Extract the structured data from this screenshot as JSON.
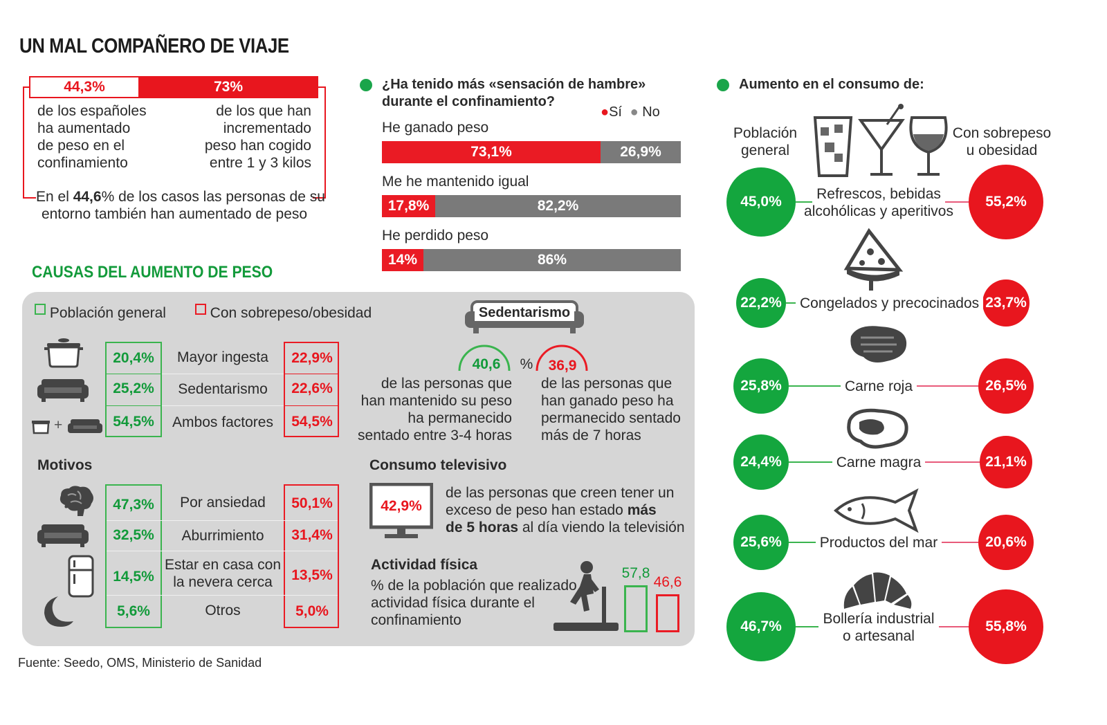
{
  "title": "UN MAL COMPAÑERO DE VIAJE",
  "colors": {
    "green": "#129a3a",
    "red": "#e8161e",
    "gray": "#7a7a7a",
    "panel": "#d6d6d6"
  },
  "top_stat": {
    "pct_left": "44,3%",
    "pct_right": "73%",
    "left_text": [
      "de los españoles",
      "ha aumentado",
      "de peso en el",
      "confinamiento"
    ],
    "right_text": [
      "de los que han",
      "incrementado",
      "peso han cogido",
      "entre 1 y 3 kilos"
    ],
    "entorno_pre": "En el ",
    "entorno_bold": "44,6",
    "entorno_post": "% de los casos las personas de su",
    "entorno_line2": "entorno también han aumentado de peso"
  },
  "hambre": {
    "question_line1": "¿Ha tenido más «sensación de hambre»",
    "question_line2": "durante el confinamiento?",
    "legend_si": "Sí",
    "legend_no": "No"
  },
  "chart_data": [
    {
      "type": "bar",
      "title": "¿Ha tenido más «sensación de hambre» durante el confinamiento?",
      "categories": [
        "He ganado peso",
        "Me he mantenido igual",
        "He perdido peso"
      ],
      "series": [
        {
          "name": "Sí",
          "values": [
            73.1,
            17.8,
            14
          ],
          "labels": [
            "73,1%",
            "17,8%",
            "14%"
          ]
        },
        {
          "name": "No",
          "values": [
            26.9,
            82.2,
            86
          ],
          "labels": [
            "26,9%",
            "82,2%",
            "86%"
          ]
        }
      ]
    },
    {
      "type": "bar",
      "title": "Actividad física",
      "categories": [
        "Población general",
        "Con sobrepeso/obesidad"
      ],
      "values": [
        57.8,
        46.6
      ],
      "labels": [
        "57,8",
        "46,6"
      ]
    }
  ],
  "causas": {
    "heading": "CAUSAS DEL AUMENTO DE PESO",
    "legend_general": "Población general",
    "legend_obesidad": "Con sobrepeso/obesidad",
    "rows": [
      {
        "label": "Mayor ingesta",
        "general": "20,4%",
        "obesidad": "22,9%"
      },
      {
        "label": "Sedentarismo",
        "general": "25,2%",
        "obesidad": "22,6%"
      },
      {
        "label": "Ambos factores",
        "general": "54,5%",
        "obesidad": "54,5%"
      }
    ],
    "motivos_heading": "Motivos",
    "motivos": [
      {
        "label": "Por ansiedad",
        "general": "47,3%",
        "obesidad": "50,1%"
      },
      {
        "label": "Aburrimiento",
        "general": "32,5%",
        "obesidad": "31,4%"
      },
      {
        "label_line1": "Estar en casa con",
        "label_line2": "la nevera cerca",
        "general": "14,5%",
        "obesidad": "13,5%"
      },
      {
        "label": "Otros",
        "general": "5,6%",
        "obesidad": "5,0%"
      }
    ],
    "plus": "+"
  },
  "sedentarismo": {
    "heading": "Sedentarismo",
    "val_green": "40,6",
    "pct_sign": "%",
    "val_red": "36,9",
    "left_text": [
      "de las personas que",
      "han mantenido su peso",
      "ha permanecido",
      "sentado entre 3-4 horas"
    ],
    "right_text": [
      "de las personas que",
      "han ganado peso ha",
      "permanecido sentado",
      "más de 7 horas"
    ]
  },
  "tv": {
    "heading": "Consumo televisivo",
    "value": "42,9%",
    "line1": "de las personas que creen tener un",
    "line2_pre": "exceso de peso han estado ",
    "line2_bold": "más",
    "line3_bold": "de 5 horas",
    "line3_post": " al día viendo la televisión"
  },
  "actividad": {
    "heading": "Actividad física",
    "text": [
      "% de la población que realizado",
      "actividad física durante el",
      "confinamiento"
    ],
    "val_green": "57,8",
    "val_red": "46,6"
  },
  "consumo": {
    "heading": "Aumento en el consumo de:",
    "label_general": [
      "Población",
      "general"
    ],
    "label_obesidad": [
      "Con sobrepeso",
      "u obesidad"
    ],
    "items": [
      {
        "label_line1": "Refrescos, bebidas",
        "label_line2": "alcohólicas y aperitivos",
        "general": "45,0%",
        "obesidad": "55,2%"
      },
      {
        "label_line1": "Congelados y precocinados",
        "general": "22,2%",
        "obesidad": "23,7%"
      },
      {
        "label_line1": "Carne roja",
        "general": "25,8%",
        "obesidad": "26,5%"
      },
      {
        "label_line1": "Carne magra",
        "general": "24,4%",
        "obesidad": "21,1%"
      },
      {
        "label_line1": "Productos del mar",
        "general": "25,6%",
        "obesidad": "20,6%"
      },
      {
        "label_line1": "Bollería industrial",
        "label_line2": "o artesanal",
        "general": "46,7%",
        "obesidad": "55,8%"
      }
    ]
  },
  "source": "Fuente: Seedo, OMS, Ministerio de Sanidad",
  "icons": [
    "pot-icon",
    "sofa-icon",
    "brain-icon",
    "fridge-icon",
    "moon-icon",
    "tv-icon",
    "treadmill-icon",
    "drinks-icon",
    "pizza-icon",
    "steak-icon",
    "fish-icon",
    "croissant-icon"
  ]
}
